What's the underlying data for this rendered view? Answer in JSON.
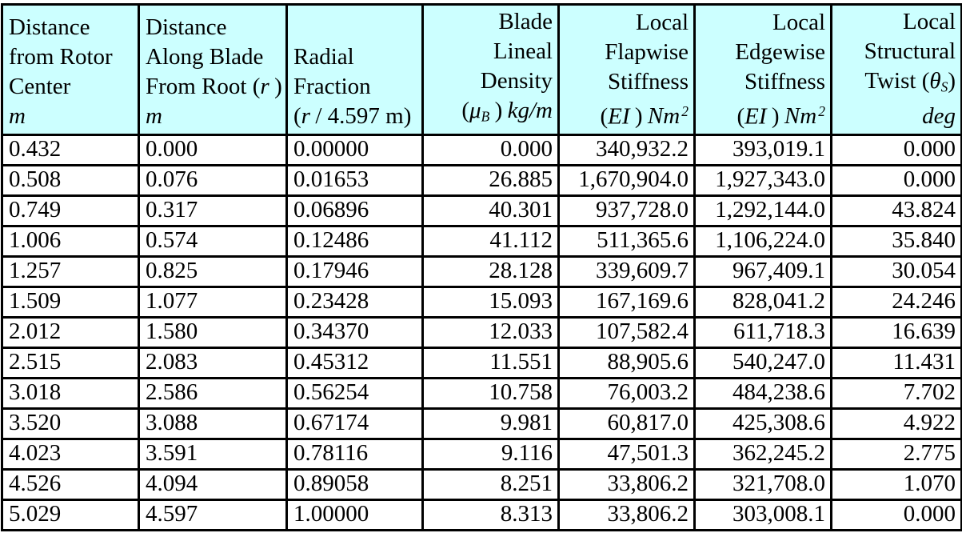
{
  "table": {
    "style": {
      "header_bg": "#CCFFFF",
      "border_color": "#000000",
      "text_color": "#000000"
    },
    "header": {
      "col1": {
        "line1": "Distance",
        "line2": "from Rotor",
        "line3": "Center",
        "unit": "m"
      },
      "col2": {
        "line1": "Distance",
        "line2": "Along Blade",
        "line3_pre": "From Root (",
        "line3_var": "r",
        "line3_close": ")",
        "unit": "m"
      },
      "col3": {
        "line1": "Radial",
        "line2": "Fraction",
        "unit_open": "(",
        "unit_var": "r",
        "unit_rest": "/ 4.597 m)"
      },
      "col4": {
        "line1": "Blade",
        "line2": "Lineal",
        "line3": "Density",
        "unit_open": "(",
        "unit_var": "μ",
        "unit_sub": "B",
        "unit_close": ")",
        "unit_tail": "kg/m"
      },
      "col5": {
        "line1": "Local",
        "line2": "Flapwise",
        "line3": "Stiffness",
        "unit_open": "(",
        "unit_var": "EI",
        "unit_close": ")",
        "unit_tail": "Nm",
        "unit_sup": "2"
      },
      "col6": {
        "line1": "Local",
        "line2": "Edgewise",
        "line3": "Stiffness",
        "unit_open": "(",
        "unit_var": "EI",
        "unit_close": ")",
        "unit_tail": "Nm",
        "unit_sup": "2"
      },
      "col7": {
        "line1": "Local",
        "line2": "Structural",
        "line3_pre": "Twist (",
        "line3_var": "θ",
        "line3_sub": "S",
        "line3_close": ")",
        "unit": "deg"
      }
    },
    "rows": [
      [
        "0.432",
        "0.000",
        "0.00000",
        "0.000",
        "340,932.2",
        "393,019.1",
        "0.000"
      ],
      [
        "0.508",
        "0.076",
        "0.01653",
        "26.885",
        "1,670,904.0",
        "1,927,343.0",
        "0.000"
      ],
      [
        "0.749",
        "0.317",
        "0.06896",
        "40.301",
        "937,728.0",
        "1,292,144.0",
        "43.824"
      ],
      [
        "1.006",
        "0.574",
        "0.12486",
        "41.112",
        "511,365.6",
        "1,106,224.0",
        "35.840"
      ],
      [
        "1.257",
        "0.825",
        "0.17946",
        "28.128",
        "339,609.7",
        "967,409.1",
        "30.054"
      ],
      [
        "1.509",
        "1.077",
        "0.23428",
        "15.093",
        "167,169.6",
        "828,041.2",
        "24.246"
      ],
      [
        "2.012",
        "1.580",
        "0.34370",
        "12.033",
        "107,582.4",
        "611,718.3",
        "16.639"
      ],
      [
        "2.515",
        "2.083",
        "0.45312",
        "11.551",
        "88,905.6",
        "540,247.0",
        "11.431"
      ],
      [
        "3.018",
        "2.586",
        "0.56254",
        "10.758",
        "76,003.2",
        "484,238.6",
        "7.702"
      ],
      [
        "3.520",
        "3.088",
        "0.67174",
        "9.981",
        "60,817.0",
        "425,308.6",
        "4.922"
      ],
      [
        "4.023",
        "3.591",
        "0.78116",
        "9.116",
        "47,501.3",
        "362,245.2",
        "2.775"
      ],
      [
        "4.526",
        "4.094",
        "0.89058",
        "8.251",
        "33,806.2",
        "321,708.0",
        "1.070"
      ],
      [
        "5.029",
        "4.597",
        "1.00000",
        "8.313",
        "33,806.2",
        "303,008.1",
        "0.000"
      ]
    ]
  }
}
